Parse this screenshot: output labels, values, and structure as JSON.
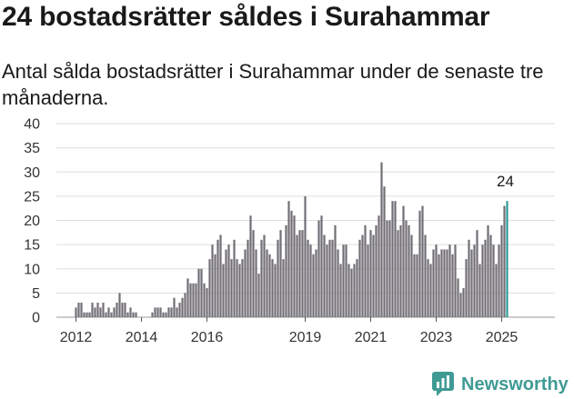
{
  "title": "24 bostadsrätter såldes i Surahammar",
  "subtitle": "Antal sålda bostadsrätter i Surahammar under de senaste tre månaderna.",
  "brand": {
    "name": "Newsworthy",
    "icon": "newsworthy-logo-icon",
    "color": "#3f9b94"
  },
  "chart_data": {
    "type": "bar",
    "title": "",
    "xlabel": "",
    "ylabel": "",
    "ylim": [
      0,
      40
    ],
    "yticks": [
      0,
      5,
      10,
      15,
      20,
      25,
      30,
      35,
      40
    ],
    "xticks": [
      {
        "label": "2012",
        "date": "2012-01"
      },
      {
        "label": "2014",
        "date": "2014-01"
      },
      {
        "label": "2016",
        "date": "2016-01"
      },
      {
        "label": "2019",
        "date": "2019-01"
      },
      {
        "label": "2021",
        "date": "2021-01"
      },
      {
        "label": "2023",
        "date": "2023-01"
      },
      {
        "label": "2025",
        "date": "2025-01"
      }
    ],
    "grid": true,
    "bar_color": "#716f75",
    "highlight_color": "#2d9c95",
    "highlight_label": "24",
    "start": "2012-01",
    "values": [
      2,
      3,
      3,
      1,
      1,
      1,
      3,
      2,
      3,
      2,
      3,
      1,
      2,
      1,
      2,
      3,
      5,
      3,
      3,
      1,
      2,
      1,
      1,
      0,
      0,
      0,
      0,
      0,
      1,
      2,
      2,
      2,
      1,
      1,
      2,
      2,
      4,
      2,
      3,
      4,
      5,
      8,
      7,
      7,
      7,
      10,
      10,
      7,
      6,
      12,
      15,
      13,
      16,
      17,
      11,
      14,
      15,
      12,
      16,
      12,
      11,
      12,
      14,
      16,
      21,
      18,
      14,
      9,
      16,
      17,
      14,
      13,
      12,
      11,
      16,
      18,
      12,
      19,
      24,
      22,
      21,
      17,
      18,
      18,
      25,
      16,
      15,
      13,
      14,
      20,
      21,
      17,
      15,
      16,
      16,
      19,
      14,
      11,
      15,
      15,
      11,
      10,
      11,
      12,
      16,
      17,
      19,
      15,
      18,
      17,
      19,
      21,
      32,
      27,
      20,
      20,
      24,
      24,
      18,
      19,
      23,
      20,
      19,
      17,
      13,
      13,
      22,
      23,
      17,
      12,
      11,
      14,
      15,
      13,
      14,
      14,
      14,
      15,
      13,
      15,
      8,
      5,
      6,
      12,
      16,
      14,
      15,
      18,
      11,
      15,
      16,
      19,
      17,
      15,
      11,
      15,
      19,
      23,
      24
    ]
  }
}
